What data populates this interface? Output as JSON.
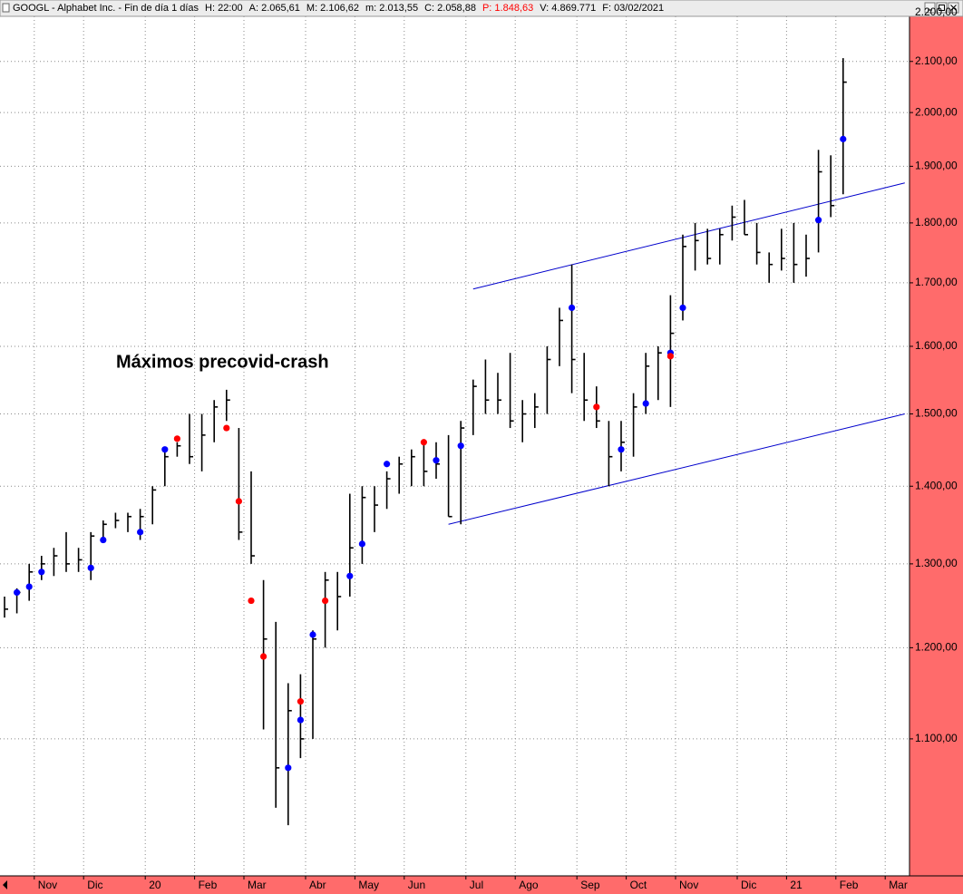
{
  "header": {
    "title": "GOOGL - Alphabet Inc. - Fin de día 1 días",
    "fields": [
      {
        "text": "H: 22:00",
        "color": "#000000"
      },
      {
        "text": "A: 2.065,61",
        "color": "#000000"
      },
      {
        "text": "M: 2.106,62",
        "color": "#000000"
      },
      {
        "text": "m: 2.013,55",
        "color": "#000000"
      },
      {
        "text": "C: 2.058,88",
        "color": "#000000"
      },
      {
        "text": "P: 1.848,63",
        "color": "#ff0000"
      },
      {
        "text": "V: 4.869.771",
        "color": "#000000"
      },
      {
        "text": "F: 03/02/2021",
        "color": "#000000"
      }
    ]
  },
  "chart_data": {
    "type": "hlc",
    "log_scale": true,
    "grid": true,
    "color": "#000000",
    "annotation": {
      "text": "Máximos precovid-crash",
      "color": "#16168a"
    },
    "categories": [
      null,
      null,
      null,
      "Nov",
      null,
      null,
      null,
      "Dic",
      null,
      null,
      null,
      null,
      "20",
      null,
      null,
      null,
      "Feb",
      null,
      null,
      null,
      "Mar",
      null,
      null,
      null,
      null,
      "Abr",
      null,
      null,
      null,
      "May",
      null,
      null,
      null,
      "Jun",
      null,
      null,
      null,
      null,
      "Jul",
      null,
      null,
      null,
      "Ago",
      null,
      null,
      null,
      null,
      "Sep",
      null,
      null,
      null,
      "Oct",
      null,
      null,
      null,
      "Nov",
      null,
      null,
      null,
      null,
      "Dic",
      null,
      null,
      null,
      "21",
      null,
      null,
      null,
      "Feb",
      null,
      null,
      null,
      "Mar",
      null
    ],
    "high": [
      1260,
      1270,
      1300,
      1310,
      1320,
      1340,
      1320,
      1340,
      1355,
      1365,
      1365,
      1370,
      1400,
      1450,
      1460,
      1500,
      1500,
      1520,
      1535,
      1480,
      1420,
      1280,
      1230,
      1160,
      1170,
      1220,
      1290,
      1290,
      1390,
      1400,
      1400,
      1420,
      1440,
      1450,
      1460,
      1460,
      1470,
      1490,
      1550,
      1580,
      1560,
      1590,
      1520,
      1530,
      1600,
      1660,
      1730,
      1590,
      1540,
      1490,
      1490,
      1530,
      1590,
      1600,
      1680,
      1780,
      1800,
      1790,
      1790,
      1830,
      1840,
      1800,
      1750,
      1790,
      1800,
      1780,
      1930,
      1920,
      2106.62,
      null,
      null,
      null,
      null,
      null
    ],
    "low": [
      1235,
      1240,
      1255,
      1280,
      1285,
      1290,
      1290,
      1280,
      1330,
      1345,
      1340,
      1330,
      1350,
      1400,
      1440,
      1430,
      1420,
      1460,
      1490,
      1330,
      1300,
      1110,
      1030,
      1013,
      1080,
      1100,
      1200,
      1220,
      1260,
      1300,
      1340,
      1370,
      1390,
      1400,
      1400,
      1410,
      1360,
      1350,
      1470,
      1500,
      1500,
      1480,
      1460,
      1480,
      1500,
      1570,
      1530,
      1490,
      1480,
      1400,
      1420,
      1440,
      1500,
      1520,
      1510,
      1640,
      1720,
      1730,
      1730,
      1770,
      1780,
      1730,
      1700,
      1720,
      1700,
      1710,
      1750,
      1810,
      1850,
      null,
      null,
      null,
      null,
      null
    ],
    "close": [
      1245,
      1265,
      1290,
      1300,
      1310,
      1300,
      1305,
      1335,
      1350,
      1355,
      1360,
      1360,
      1395,
      1440,
      1455,
      1440,
      1470,
      1510,
      1520,
      1340,
      1310,
      1210,
      1070,
      1130,
      1100,
      1210,
      1280,
      1260,
      1320,
      1385,
      1375,
      1410,
      1430,
      1440,
      1420,
      1430,
      1360,
      1480,
      1540,
      1520,
      1520,
      1490,
      1500,
      1510,
      1580,
      1640,
      1580,
      1520,
      1490,
      1440,
      1460,
      1510,
      1570,
      1590,
      1620,
      1760,
      1770,
      1740,
      1780,
      1810,
      1780,
      1750,
      1730,
      1740,
      1730,
      1740,
      1890,
      1830,
      2058.88,
      null,
      null,
      null,
      null,
      null
    ],
    "signals": [
      {
        "color": "#0000ff",
        "values": [
          null,
          1265,
          1272,
          1290,
          null,
          null,
          null,
          1295,
          1330,
          null,
          null,
          1340,
          null,
          1450,
          null,
          null,
          null,
          null,
          null,
          null,
          null,
          null,
          null,
          1070,
          1120,
          1215,
          null,
          null,
          1285,
          1325,
          null,
          1430,
          null,
          null,
          null,
          1435,
          null,
          1455,
          null,
          null,
          null,
          null,
          null,
          null,
          null,
          null,
          1660,
          null,
          null,
          null,
          1450,
          null,
          1515,
          null,
          1590,
          1660,
          null,
          null,
          null,
          null,
          null,
          null,
          null,
          null,
          null,
          null,
          1805,
          null,
          1950,
          null,
          null,
          null,
          null,
          null
        ]
      },
      {
        "color": "#ff0000",
        "values": [
          null,
          null,
          null,
          null,
          null,
          null,
          null,
          null,
          null,
          null,
          null,
          null,
          null,
          null,
          1465,
          null,
          null,
          null,
          1480,
          1380,
          1255,
          1190,
          null,
          null,
          1140,
          null,
          1255,
          null,
          null,
          null,
          null,
          null,
          null,
          null,
          1460,
          null,
          null,
          null,
          null,
          null,
          null,
          null,
          null,
          null,
          null,
          null,
          null,
          null,
          1510,
          null,
          null,
          null,
          null,
          null,
          1585,
          null,
          null,
          null,
          null,
          null,
          null,
          null,
          null,
          null,
          null,
          null,
          null,
          null,
          null,
          null,
          null,
          null,
          null,
          null
        ]
      }
    ],
    "trendlines": [
      {
        "color": "#0000cc",
        "values": [
          null,
          null,
          null,
          null,
          null,
          null,
          null,
          null,
          null,
          null,
          null,
          null,
          null,
          null,
          null,
          null,
          null,
          null,
          null,
          null,
          null,
          null,
          null,
          null,
          null,
          null,
          null,
          null,
          null,
          null,
          null,
          null,
          null,
          null,
          null,
          null,
          null,
          null,
          1690,
          null,
          null,
          null,
          null,
          null,
          null,
          null,
          null,
          null,
          null,
          null,
          null,
          null,
          null,
          null,
          null,
          null,
          null,
          null,
          null,
          null,
          null,
          null,
          null,
          null,
          null,
          null,
          null,
          null,
          null,
          null,
          null,
          null,
          null,
          1870
        ]
      },
      {
        "color": "#0000cc",
        "values": [
          null,
          null,
          null,
          null,
          null,
          null,
          null,
          null,
          null,
          null,
          null,
          null,
          null,
          null,
          null,
          null,
          null,
          null,
          null,
          null,
          null,
          null,
          null,
          null,
          null,
          null,
          null,
          null,
          null,
          null,
          null,
          null,
          null,
          null,
          null,
          null,
          1350,
          null,
          null,
          null,
          null,
          null,
          null,
          null,
          null,
          null,
          null,
          null,
          null,
          null,
          null,
          null,
          null,
          null,
          null,
          null,
          null,
          null,
          null,
          null,
          null,
          null,
          null,
          null,
          null,
          null,
          null,
          null,
          null,
          null,
          null,
          null,
          null,
          1500
        ]
      }
    ],
    "ylim": [
      966,
      2200
    ],
    "yticks": [
      {
        "value": 1100,
        "label": "1.100,00"
      },
      {
        "value": 1200,
        "label": "1.200,00"
      },
      {
        "value": 1300,
        "label": "1.300,00"
      },
      {
        "value": 1400,
        "label": "1.400,00"
      },
      {
        "value": 1500,
        "label": "1.500,00"
      },
      {
        "value": 1600,
        "label": "1.600,00"
      },
      {
        "value": 1700,
        "label": "1.700,00"
      },
      {
        "value": 1800,
        "label": "1.800,00"
      },
      {
        "value": 1900,
        "label": "1.900,00"
      },
      {
        "value": 2000,
        "label": "2.000,00"
      },
      {
        "value": 2100,
        "label": "2.100,00"
      },
      {
        "value": 2200,
        "label": "2.200,00"
      }
    ]
  }
}
